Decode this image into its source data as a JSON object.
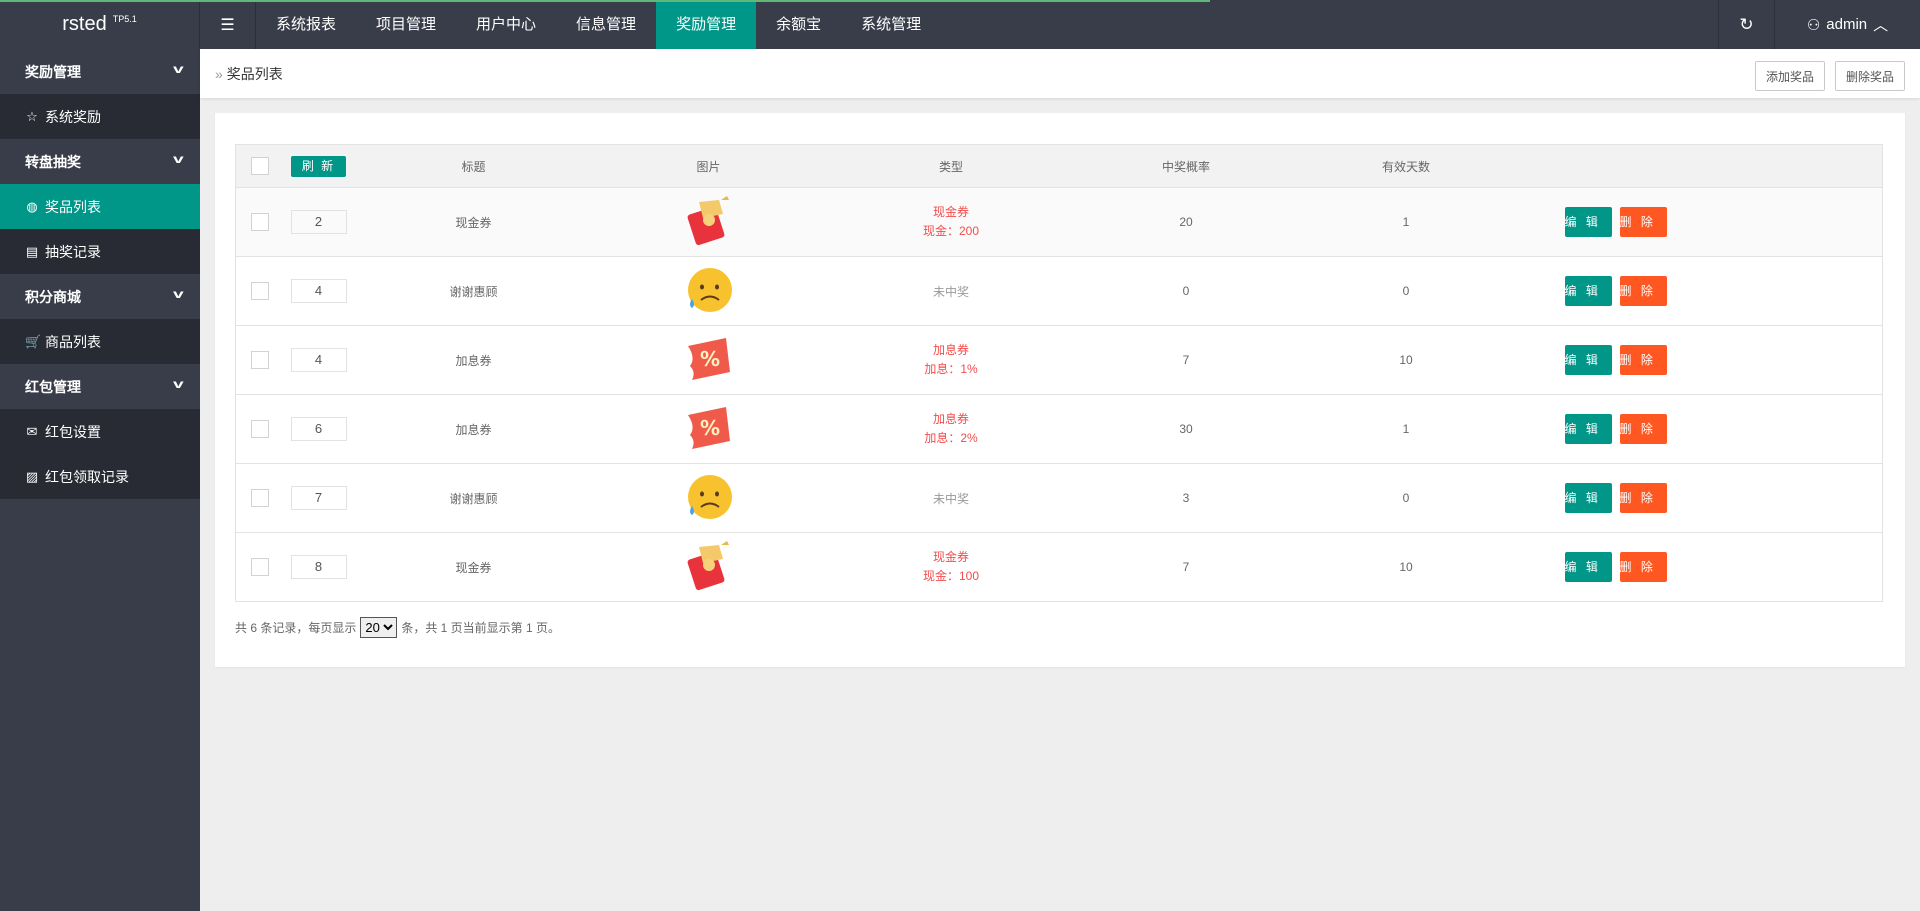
{
  "header": {
    "logo": "rsted",
    "logo_sup": "TP5.1",
    "nav": [
      "系统报表",
      "项目管理",
      "用户中心",
      "信息管理",
      "奖励管理",
      "余额宝",
      "系统管理"
    ],
    "active_nav": 4,
    "user": "admin"
  },
  "sidebar": {
    "items": [
      {
        "label": "奖励管理",
        "type": "group"
      },
      {
        "label": "系统奖励",
        "type": "sub",
        "icon": "☆"
      },
      {
        "label": "转盘抽奖",
        "type": "group"
      },
      {
        "label": "奖品列表",
        "type": "sub",
        "icon": "◍",
        "active": true
      },
      {
        "label": "抽奖记录",
        "type": "sub",
        "icon": "▤"
      },
      {
        "label": "积分商城",
        "type": "group"
      },
      {
        "label": "商品列表",
        "type": "sub",
        "icon": "🛒"
      },
      {
        "label": "红包管理",
        "type": "group"
      },
      {
        "label": "红包设置",
        "type": "sub",
        "icon": "✉"
      },
      {
        "label": "红包领取记录",
        "type": "sub",
        "icon": "▨"
      }
    ]
  },
  "breadcrumb": {
    "title": "奖品列表",
    "add": "添加奖品",
    "delete": "删除奖品"
  },
  "table": {
    "refresh": "刷 新",
    "headers": [
      "标题",
      "图片",
      "类型",
      "中奖概率",
      "有效天数"
    ],
    "edit": "编 辑",
    "del": "删 除",
    "rows": [
      {
        "sort": "2",
        "title": "现金券",
        "image": "red-envelope",
        "type": "现金券",
        "detail": "现金：200",
        "rate": "20",
        "days": "1"
      },
      {
        "sort": "4",
        "title": "谢谢惠顾",
        "image": "sad-face",
        "type": "未中奖",
        "detail": "",
        "rate": "0",
        "days": "0"
      },
      {
        "sort": "4",
        "title": "加息券",
        "image": "percent-ticket",
        "type": "加息券",
        "detail": "加息：1%",
        "rate": "7",
        "days": "10"
      },
      {
        "sort": "6",
        "title": "加息券",
        "image": "percent-ticket",
        "type": "加息券",
        "detail": "加息：2%",
        "rate": "30",
        "days": "1"
      },
      {
        "sort": "7",
        "title": "谢谢惠顾",
        "image": "sad-face",
        "type": "未中奖",
        "detail": "",
        "rate": "3",
        "days": "0"
      },
      {
        "sort": "8",
        "title": "现金券",
        "image": "red-envelope",
        "type": "现金券",
        "detail": "现金：100",
        "rate": "7",
        "days": "10"
      }
    ]
  },
  "pager": {
    "pre": "共 6 条记录，每页显示",
    "page_size": "20",
    "post": "条，共 1 页当前显示第 1 页。"
  },
  "colors": {
    "accent": "#009688",
    "danger": "#FF5722",
    "header": "#393D49"
  }
}
